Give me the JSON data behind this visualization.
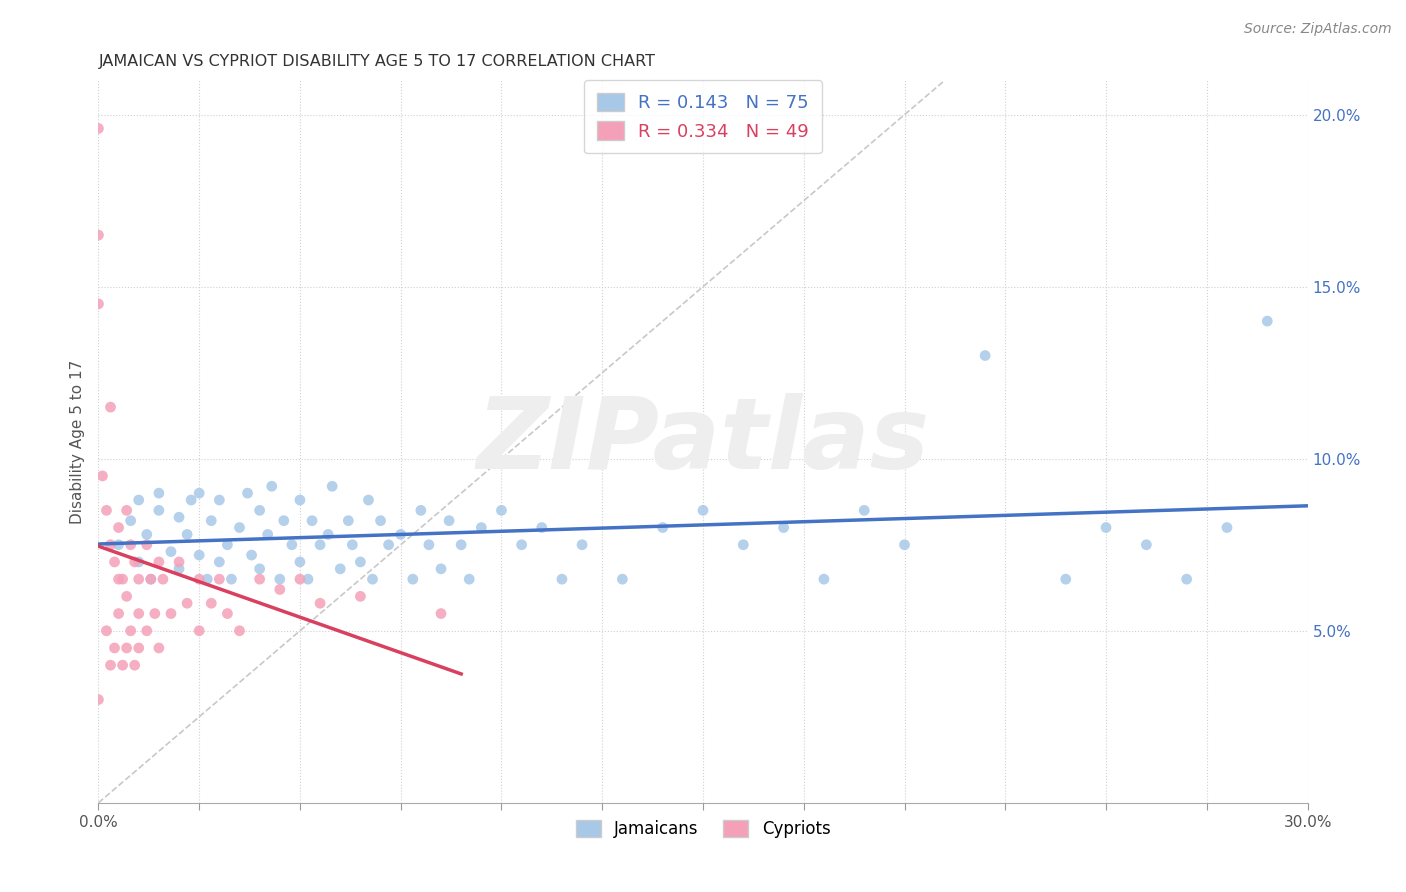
{
  "title": "JAMAICAN VS CYPRIOT DISABILITY AGE 5 TO 17 CORRELATION CHART",
  "source_text": "Source: ZipAtlas.com",
  "ylabel": "Disability Age 5 to 17",
  "xmin": 0.0,
  "xmax": 0.3,
  "ymin": 0.0,
  "ymax": 0.21,
  "x_ticks": [
    0.0,
    0.025,
    0.05,
    0.075,
    0.1,
    0.125,
    0.15,
    0.175,
    0.2,
    0.225,
    0.25,
    0.275,
    0.3
  ],
  "x_tick_labels_show": {
    "0.0": "0.0%",
    "0.30": "30.0%"
  },
  "y_ticks_right": [
    0.05,
    0.1,
    0.15,
    0.2
  ],
  "y_tick_labels_right": [
    "5.0%",
    "10.0%",
    "15.0%",
    "20.0%"
  ],
  "jamaicans_R": 0.143,
  "jamaicans_N": 75,
  "cypriots_R": 0.334,
  "cypriots_N": 49,
  "jamaicans_color": "#a8c8e8",
  "cypriots_color": "#f4a0b8",
  "jamaicans_line_color": "#4472c4",
  "cypriots_line_color": "#d94060",
  "diagonal_color": "#c8c8c8",
  "watermark": "ZIPatlas",
  "jamaicans_x": [
    0.005,
    0.008,
    0.01,
    0.01,
    0.012,
    0.013,
    0.015,
    0.015,
    0.018,
    0.02,
    0.02,
    0.022,
    0.023,
    0.025,
    0.025,
    0.027,
    0.028,
    0.03,
    0.03,
    0.032,
    0.033,
    0.035,
    0.037,
    0.038,
    0.04,
    0.04,
    0.042,
    0.043,
    0.045,
    0.046,
    0.048,
    0.05,
    0.05,
    0.052,
    0.053,
    0.055,
    0.057,
    0.058,
    0.06,
    0.062,
    0.063,
    0.065,
    0.067,
    0.068,
    0.07,
    0.072,
    0.075,
    0.078,
    0.08,
    0.082,
    0.085,
    0.087,
    0.09,
    0.092,
    0.095,
    0.1,
    0.105,
    0.11,
    0.115,
    0.12,
    0.13,
    0.14,
    0.15,
    0.16,
    0.17,
    0.18,
    0.19,
    0.2,
    0.22,
    0.24,
    0.25,
    0.26,
    0.27,
    0.28,
    0.29
  ],
  "jamaicans_y": [
    0.075,
    0.082,
    0.07,
    0.088,
    0.078,
    0.065,
    0.085,
    0.09,
    0.073,
    0.068,
    0.083,
    0.078,
    0.088,
    0.072,
    0.09,
    0.065,
    0.082,
    0.07,
    0.088,
    0.075,
    0.065,
    0.08,
    0.09,
    0.072,
    0.068,
    0.085,
    0.078,
    0.092,
    0.065,
    0.082,
    0.075,
    0.07,
    0.088,
    0.065,
    0.082,
    0.075,
    0.078,
    0.092,
    0.068,
    0.082,
    0.075,
    0.07,
    0.088,
    0.065,
    0.082,
    0.075,
    0.078,
    0.065,
    0.085,
    0.075,
    0.068,
    0.082,
    0.075,
    0.065,
    0.08,
    0.085,
    0.075,
    0.08,
    0.065,
    0.075,
    0.065,
    0.08,
    0.085,
    0.075,
    0.08,
    0.065,
    0.085,
    0.075,
    0.13,
    0.065,
    0.08,
    0.075,
    0.065,
    0.08,
    0.14
  ],
  "cypriots_x": [
    0.0,
    0.0,
    0.0,
    0.0,
    0.001,
    0.002,
    0.002,
    0.003,
    0.003,
    0.003,
    0.004,
    0.004,
    0.005,
    0.005,
    0.005,
    0.006,
    0.006,
    0.007,
    0.007,
    0.007,
    0.008,
    0.008,
    0.009,
    0.009,
    0.01,
    0.01,
    0.01,
    0.012,
    0.012,
    0.013,
    0.014,
    0.015,
    0.015,
    0.016,
    0.018,
    0.02,
    0.022,
    0.025,
    0.025,
    0.028,
    0.03,
    0.032,
    0.035,
    0.04,
    0.045,
    0.05,
    0.055,
    0.065,
    0.085
  ],
  "cypriots_y": [
    0.196,
    0.165,
    0.145,
    0.03,
    0.095,
    0.085,
    0.05,
    0.115,
    0.075,
    0.04,
    0.07,
    0.045,
    0.065,
    0.055,
    0.08,
    0.065,
    0.04,
    0.085,
    0.06,
    0.045,
    0.075,
    0.05,
    0.07,
    0.04,
    0.065,
    0.055,
    0.045,
    0.075,
    0.05,
    0.065,
    0.055,
    0.07,
    0.045,
    0.065,
    0.055,
    0.07,
    0.058,
    0.065,
    0.05,
    0.058,
    0.065,
    0.055,
    0.05,
    0.065,
    0.062,
    0.065,
    0.058,
    0.06,
    0.055
  ]
}
